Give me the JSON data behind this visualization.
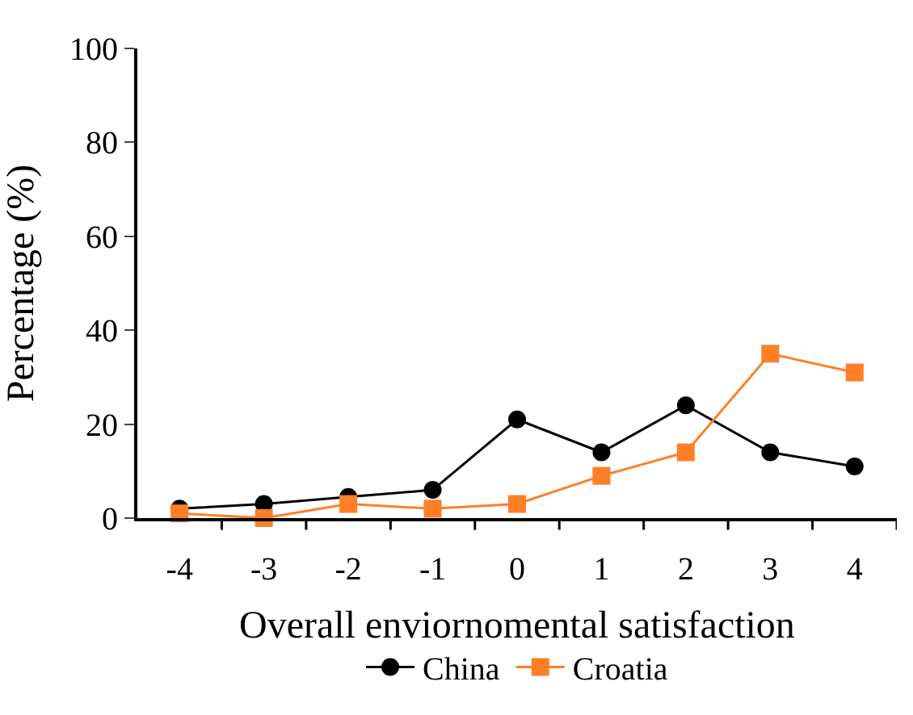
{
  "chart_data": {
    "type": "line",
    "xlabel": "Overall enviornomental satisfaction",
    "ylabel": "Percentage (%)",
    "categories": [
      "-4",
      "-3",
      "-2",
      "-1",
      "0",
      "1",
      "2",
      "3",
      "4"
    ],
    "series": [
      {
        "name": "China",
        "color": "#000000",
        "marker": "circle",
        "values": [
          2,
          3,
          4.5,
          6,
          21,
          14,
          24,
          14,
          11
        ]
      },
      {
        "name": "Croatia",
        "color": "#ff7f27",
        "marker": "square",
        "values": [
          1,
          0,
          3,
          2,
          3,
          9,
          14,
          35,
          31
        ]
      }
    ],
    "ylim": [
      0,
      100
    ],
    "yticks": [
      0,
      20,
      40,
      60,
      80,
      100
    ],
    "legend": "bottom",
    "line_style": "solid"
  }
}
